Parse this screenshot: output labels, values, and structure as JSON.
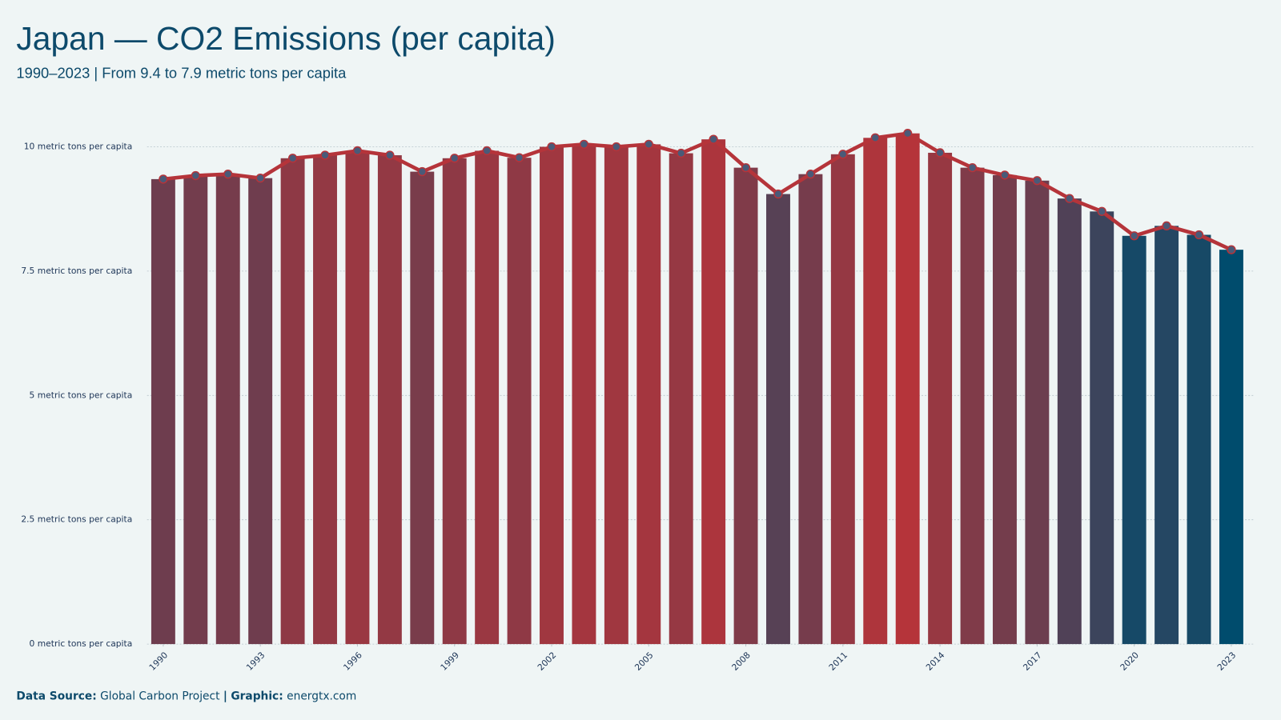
{
  "chart_data": {
    "type": "bar",
    "title": "Japan — CO2 Emissions (per capita)",
    "subtitle": "1990–2023 | From 9.4 to 7.9 metric tons per capita",
    "x": [
      1990,
      1991,
      1992,
      1993,
      1994,
      1995,
      1996,
      1997,
      1998,
      1999,
      2000,
      2001,
      2002,
      2003,
      2004,
      2005,
      2006,
      2007,
      2008,
      2009,
      2010,
      2011,
      2012,
      2013,
      2014,
      2015,
      2016,
      2017,
      2018,
      2019,
      2020,
      2021,
      2022,
      2023
    ],
    "values": [
      9.35,
      9.42,
      9.45,
      9.37,
      9.77,
      9.83,
      9.92,
      9.83,
      9.5,
      9.77,
      9.92,
      9.78,
      10.0,
      10.05,
      10.0,
      10.05,
      9.87,
      10.15,
      9.58,
      9.05,
      9.45,
      9.85,
      10.18,
      10.27,
      9.88,
      9.58,
      9.43,
      9.32,
      8.96,
      8.7,
      8.21,
      8.41,
      8.23,
      7.93
    ],
    "color_scale": [
      "#004c6d",
      "#b5343a"
    ],
    "line_color": "#b5343a",
    "marker_color": "#4a5a78",
    "xlim": [
      1989.5,
      2023.5
    ],
    "xticks": [
      1990,
      1993,
      1996,
      1999,
      2002,
      2005,
      2008,
      2011,
      2014,
      2017,
      2020,
      2023
    ],
    "ylim": [
      0,
      10.9
    ],
    "yticks": [
      {
        "value": 0,
        "label": "0 metric tons per capita"
      },
      {
        "value": 2.5,
        "label": "2.5 metric tons per capita"
      },
      {
        "value": 5,
        "label": "5 metric tons per capita"
      },
      {
        "value": 7.5,
        "label": "7.5 metric tons per capita"
      },
      {
        "value": 10,
        "label": "10 metric tons per capita"
      }
    ],
    "grid": true,
    "source": {
      "label": "Data Source:",
      "text": "Global Carbon Project",
      "separator": "|",
      "graphic_label": "Graphic:",
      "graphic_text": "energtx.com"
    }
  }
}
